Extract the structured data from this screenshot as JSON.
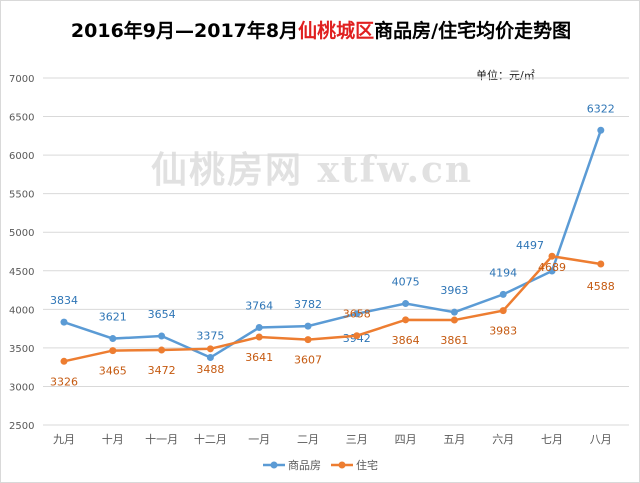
{
  "chart_data": {
    "type": "line",
    "title_part1": "2016年9月—2017年8月",
    "title_highlight": "仙桃城区",
    "title_part2": "商品房/住宅均价走势图",
    "unit": "单位：元/㎡",
    "watermark": "仙桃房网 xtfw.cn",
    "categories": [
      "九月",
      "十月",
      "十一月",
      "十二月",
      "一月",
      "二月",
      "三月",
      "四月",
      "五月",
      "六月",
      "七月",
      "八月"
    ],
    "ylim": [
      2500,
      7000
    ],
    "yticks": [
      2500,
      3000,
      3500,
      4000,
      4500,
      5000,
      5500,
      6000,
      6500,
      7000
    ],
    "grid": true,
    "legend_position": "bottom",
    "series": [
      {
        "name": "商品房",
        "color": "#5b9bd5",
        "values": [
          3834,
          3621,
          3654,
          3375,
          3764,
          3782,
          3942,
          4075,
          3963,
          4194,
          4497,
          6322
        ]
      },
      {
        "name": "住宅",
        "color": "#ed7d31",
        "values": [
          3326,
          3465,
          3472,
          3488,
          3641,
          3607,
          3658,
          3864,
          3861,
          3983,
          4689,
          4588
        ]
      }
    ]
  }
}
